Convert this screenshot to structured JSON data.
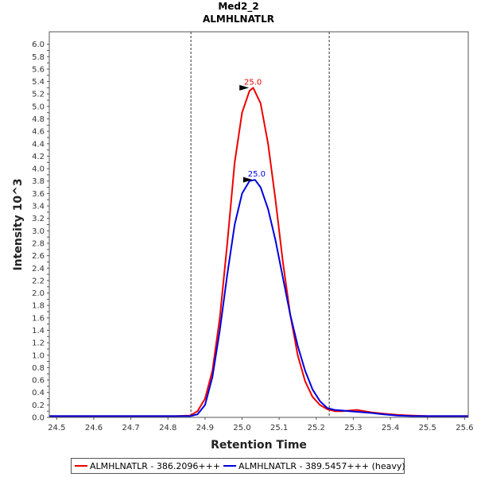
{
  "chart_data": {
    "type": "line",
    "title": "Med2_2",
    "subtitle": "ALMHLNATLR",
    "xlabel": "Retention Time",
    "ylabel": "Intensity 10^3",
    "xlim": [
      24.48,
      25.61
    ],
    "ylim": [
      0,
      6.2
    ],
    "x_ticks": [
      "24.5",
      "24.6",
      "24.7",
      "24.8",
      "24.9",
      "25.0",
      "25.1",
      "25.2",
      "25.3",
      "25.4",
      "25.5",
      "25.6"
    ],
    "y_ticks": [
      "0.0",
      "0.1",
      "0.2",
      "0.3",
      "0.4",
      "0.5",
      "0.6",
      "0.7",
      "0.8",
      "0.9",
      "1.0",
      "1.1",
      "1.2",
      "1.3",
      "1.4",
      "1.5",
      "1.6",
      "1.7",
      "1.8",
      "1.9",
      "2.0",
      "2.1",
      "2.2",
      "2.3",
      "2.4",
      "2.5",
      "2.6",
      "2.7",
      "2.8",
      "2.9",
      "3.0",
      "3.1",
      "3.2",
      "3.3",
      "3.4",
      "3.5",
      "3.6",
      "3.7",
      "3.8",
      "3.9",
      "4.0",
      "4.1",
      "4.2",
      "4.3",
      "4.4",
      "4.5",
      "4.6",
      "4.7",
      "4.8",
      "4.9",
      "5.0",
      "5.1",
      "5.2",
      "5.3",
      "5.4",
      "5.5",
      "5.6",
      "5.7",
      "5.8",
      "5.9",
      "6.0"
    ],
    "grid": false,
    "legend_position": "bottom",
    "boundaries": [
      24.862,
      25.235
    ],
    "series": [
      {
        "name": "ALMHLNATLR - 386.2096+++",
        "color": "#ee0000",
        "peak_label": "25.0",
        "peak_x": 25.025,
        "peak_y": 5.3,
        "x": [
          24.48,
          24.55,
          24.65,
          24.75,
          24.82,
          24.86,
          24.88,
          24.9,
          24.92,
          24.94,
          24.96,
          24.98,
          25.0,
          25.02,
          25.03,
          25.05,
          25.07,
          25.09,
          25.11,
          25.13,
          25.15,
          25.17,
          25.19,
          25.21,
          25.23,
          25.25,
          25.27,
          25.29,
          25.31,
          25.33,
          25.35,
          25.38,
          25.42,
          25.46,
          25.5,
          25.55,
          25.61
        ],
        "y": [
          0.02,
          0.02,
          0.02,
          0.02,
          0.02,
          0.03,
          0.1,
          0.3,
          0.75,
          1.6,
          2.8,
          4.1,
          4.9,
          5.25,
          5.3,
          5.05,
          4.4,
          3.5,
          2.5,
          1.65,
          1.0,
          0.58,
          0.33,
          0.2,
          0.13,
          0.1,
          0.1,
          0.11,
          0.12,
          0.1,
          0.08,
          0.06,
          0.04,
          0.03,
          0.02,
          0.02,
          0.02
        ]
      },
      {
        "name": "ALMHLNATLR - 389.5457+++ (heavy)",
        "color": "#0000dd",
        "peak_label": "25.0",
        "peak_x": 25.035,
        "peak_y": 3.82,
        "x": [
          24.48,
          24.55,
          24.65,
          24.75,
          24.82,
          24.86,
          24.88,
          24.9,
          24.92,
          24.94,
          24.96,
          24.98,
          25.0,
          25.02,
          25.035,
          25.05,
          25.07,
          25.09,
          25.11,
          25.13,
          25.15,
          25.17,
          25.19,
          25.21,
          25.23,
          25.25,
          25.27,
          25.29,
          25.31,
          25.33,
          25.35,
          25.38,
          25.42,
          25.46,
          25.5,
          25.55,
          25.61
        ],
        "y": [
          0.02,
          0.02,
          0.02,
          0.02,
          0.02,
          0.02,
          0.05,
          0.2,
          0.65,
          1.4,
          2.3,
          3.1,
          3.6,
          3.8,
          3.82,
          3.7,
          3.35,
          2.85,
          2.25,
          1.65,
          1.15,
          0.75,
          0.45,
          0.26,
          0.15,
          0.12,
          0.11,
          0.1,
          0.09,
          0.08,
          0.07,
          0.05,
          0.03,
          0.02,
          0.02,
          0.02,
          0.02
        ]
      }
    ]
  }
}
